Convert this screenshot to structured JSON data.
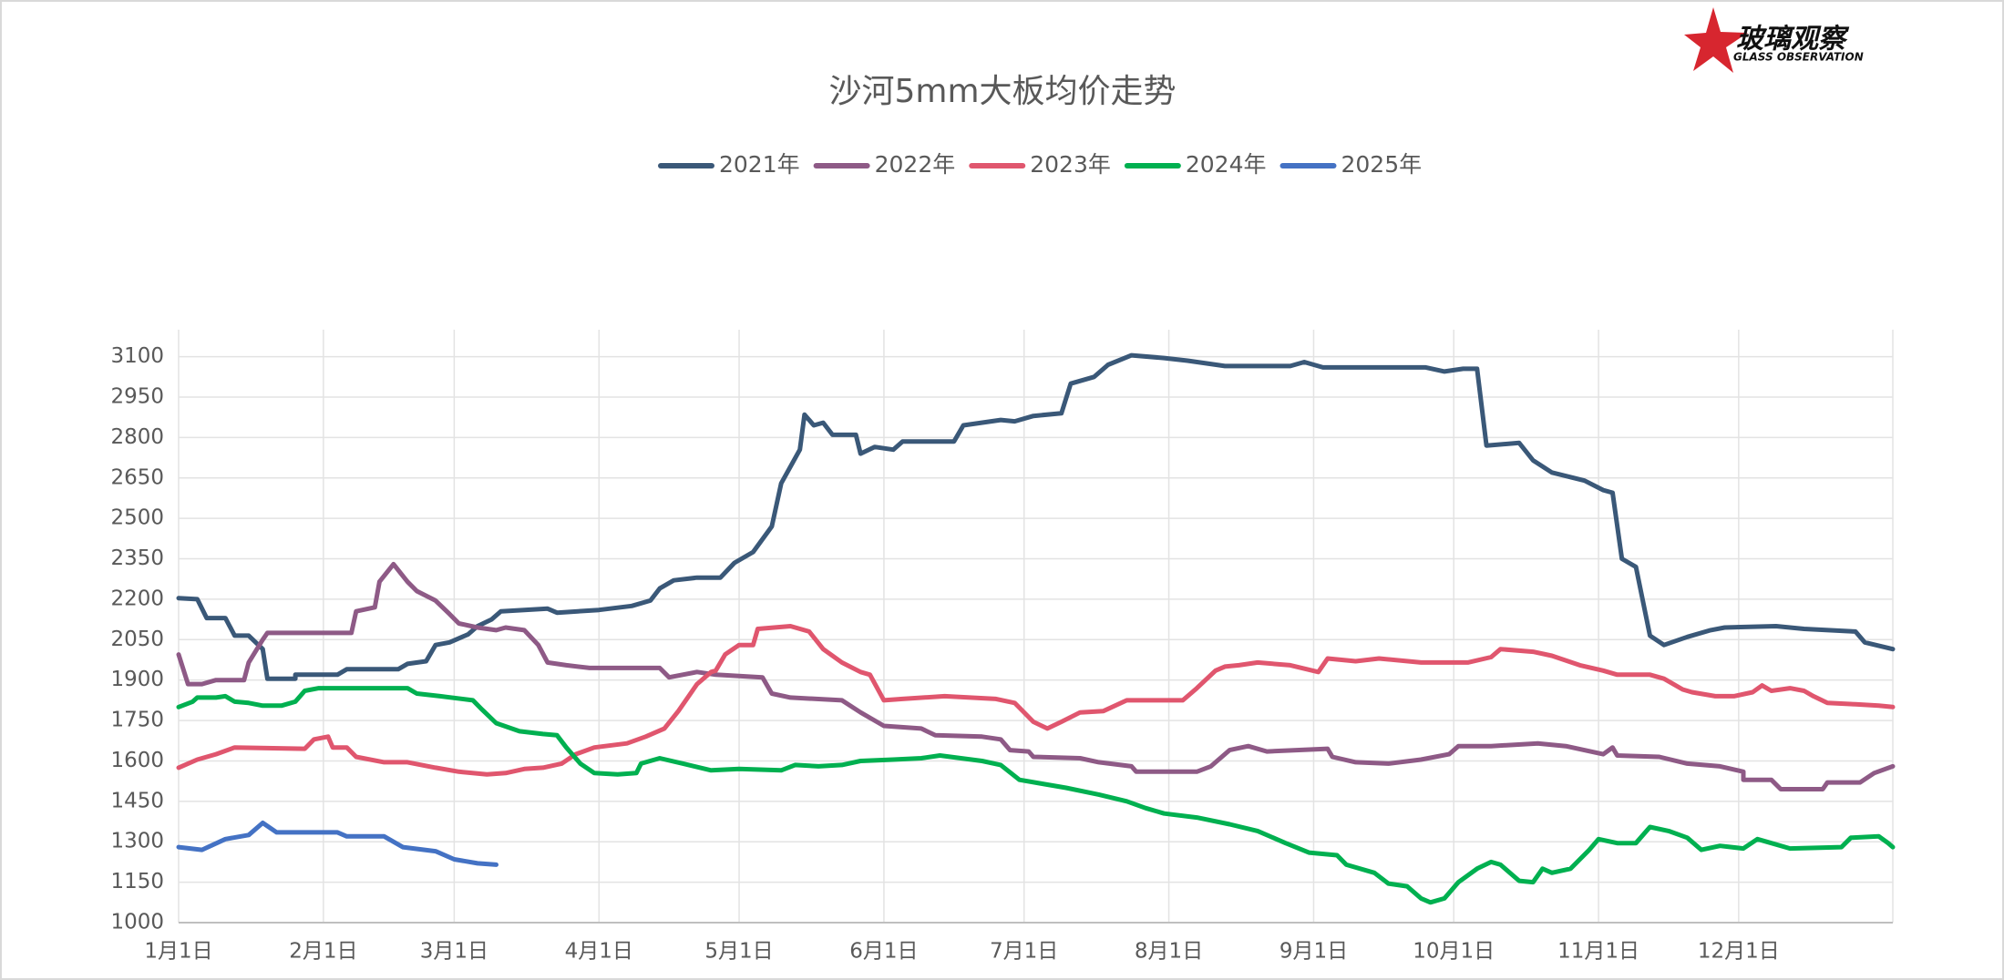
{
  "chart_data": {
    "type": "line",
    "title": "沙河5mm大板均价走势",
    "logo": {
      "text": "玻璃观察",
      "subtitle": "GLASS OBSERVATION"
    },
    "xlim": [
      0,
      367
    ],
    "xticks": [
      {
        "value": 0,
        "label": "1月1日"
      },
      {
        "value": 31,
        "label": "2月1日"
      },
      {
        "value": 59,
        "label": "3月1日"
      },
      {
        "value": 90,
        "label": "4月1日"
      },
      {
        "value": 120,
        "label": "5月1日"
      },
      {
        "value": 151,
        "label": "6月1日"
      },
      {
        "value": 181,
        "label": "7月1日"
      },
      {
        "value": 212,
        "label": "8月1日"
      },
      {
        "value": 243,
        "label": "9月1日"
      },
      {
        "value": 273,
        "label": "10月1日"
      },
      {
        "value": 304,
        "label": "11月1日"
      },
      {
        "value": 334,
        "label": "12月1日"
      }
    ],
    "ylim": [
      1000,
      3200
    ],
    "yticks": [
      1000,
      1150,
      1300,
      1450,
      1600,
      1750,
      1900,
      2050,
      2200,
      2350,
      2500,
      2650,
      2800,
      2950,
      3100
    ],
    "grid": true,
    "legend": "top",
    "series": [
      {
        "name": "2021年",
        "color": "#3a5878",
        "x": [
          0,
          4,
          6,
          10,
          12,
          15,
          18,
          19,
          25,
          25,
          34,
          36,
          47,
          49,
          53,
          55,
          58,
          62,
          64,
          67,
          69,
          74,
          79,
          81,
          90,
          97,
          101,
          103,
          106,
          111,
          116,
          119,
          123,
          127,
          129,
          133,
          134,
          136,
          138,
          140,
          145,
          146,
          149,
          153,
          155,
          166,
          168,
          176,
          179,
          183,
          189,
          191,
          196,
          199,
          204,
          211,
          216,
          224,
          238,
          241,
          245,
          267,
          271,
          275,
          278,
          280,
          287,
          290,
          294,
          301,
          305,
          307,
          309,
          312,
          315,
          318,
          323,
          328,
          331,
          342,
          348,
          359,
          361,
          367
        ],
        "values": [
          2204,
          2200,
          2130,
          2130,
          2065,
          2065,
          2015,
          1905,
          1905,
          1920,
          1920,
          1940,
          1940,
          1960,
          1970,
          2030,
          2040,
          2070,
          2100,
          2125,
          2155,
          2160,
          2165,
          2150,
          2160,
          2175,
          2195,
          2240,
          2270,
          2280,
          2280,
          2335,
          2375,
          2470,
          2630,
          2755,
          2885,
          2845,
          2855,
          2810,
          2810,
          2740,
          2765,
          2755,
          2785,
          2785,
          2845,
          2865,
          2860,
          2880,
          2890,
          3000,
          3025,
          3070,
          3105,
          3095,
          3085,
          3065,
          3065,
          3080,
          3060,
          3060,
          3045,
          3055,
          3055,
          2770,
          2780,
          2715,
          2670,
          2640,
          2605,
          2595,
          2350,
          2320,
          2065,
          2030,
          2060,
          2085,
          2095,
          2100,
          2090,
          2080,
          2040,
          2015
        ]
      },
      {
        "name": "2022年",
        "color": "#8e5a86",
        "x": [
          0,
          2,
          5,
          8,
          14,
          15,
          18,
          19,
          37,
          38,
          42,
          43,
          46,
          49,
          51,
          55,
          58,
          60,
          64,
          68,
          70,
          74,
          77,
          79,
          83,
          88,
          103,
          105,
          111,
          115,
          125,
          127,
          131,
          142,
          146,
          151,
          159,
          162,
          172,
          176,
          178,
          182,
          183,
          193,
          197,
          204,
          205,
          218,
          221,
          225,
          229,
          233,
          246,
          247,
          252,
          259,
          266,
          272,
          274,
          281,
          291,
          297,
          305,
          307,
          308,
          317,
          323,
          330,
          335,
          335,
          341,
          343,
          352,
          353,
          360,
          363,
          367
        ],
        "values": [
          1995,
          1885,
          1885,
          1900,
          1900,
          1965,
          2050,
          2075,
          2075,
          2155,
          2170,
          2265,
          2330,
          2265,
          2230,
          2195,
          2145,
          2110,
          2095,
          2085,
          2095,
          2085,
          2030,
          1965,
          1955,
          1945,
          1945,
          1910,
          1930,
          1920,
          1910,
          1850,
          1835,
          1825,
          1780,
          1730,
          1720,
          1695,
          1690,
          1680,
          1640,
          1635,
          1615,
          1610,
          1595,
          1580,
          1560,
          1560,
          1580,
          1640,
          1655,
          1635,
          1645,
          1615,
          1595,
          1590,
          1605,
          1625,
          1655,
          1655,
          1665,
          1655,
          1625,
          1650,
          1620,
          1615,
          1590,
          1580,
          1560,
          1530,
          1530,
          1495,
          1495,
          1520,
          1520,
          1555,
          1580
        ]
      },
      {
        "name": "2023年",
        "color": "#e0566e",
        "x": [
          0,
          4,
          8,
          12,
          27,
          29,
          32,
          33,
          36,
          38,
          44,
          49,
          55,
          60,
          66,
          70,
          74,
          78,
          82,
          85,
          89,
          96,
          100,
          104,
          107,
          111,
          114,
          115,
          117,
          120,
          123,
          124,
          131,
          135,
          138,
          142,
          146,
          148,
          151,
          155,
          164,
          175,
          179,
          183,
          186,
          189,
          193,
          198,
          203,
          208,
          215,
          218,
          222,
          224,
          227,
          231,
          238,
          244,
          246,
          252,
          257,
          266,
          276,
          281,
          283,
          290,
          294,
          300,
          305,
          308,
          315,
          318,
          322,
          324,
          329,
          333,
          337,
          339,
          341,
          345,
          348,
          350,
          353,
          359,
          364,
          367
        ],
        "values": [
          1575,
          1605,
          1625,
          1650,
          1645,
          1680,
          1690,
          1650,
          1650,
          1615,
          1595,
          1595,
          1575,
          1560,
          1550,
          1555,
          1570,
          1575,
          1590,
          1625,
          1650,
          1665,
          1690,
          1720,
          1785,
          1885,
          1930,
          1935,
          1995,
          2030,
          2030,
          2090,
          2100,
          2080,
          2015,
          1965,
          1930,
          1920,
          1825,
          1830,
          1840,
          1830,
          1815,
          1745,
          1720,
          1745,
          1780,
          1785,
          1825,
          1825,
          1825,
          1870,
          1935,
          1950,
          1955,
          1965,
          1955,
          1930,
          1980,
          1970,
          1980,
          1965,
          1965,
          1985,
          2015,
          2005,
          1990,
          1955,
          1935,
          1920,
          1920,
          1905,
          1865,
          1855,
          1840,
          1840,
          1855,
          1880,
          1860,
          1870,
          1860,
          1840,
          1815,
          1810,
          1805,
          1800
        ]
      },
      {
        "name": "2024年",
        "color": "#00b050",
        "x": [
          0,
          3,
          4,
          8,
          10,
          12,
          15,
          18,
          22,
          25,
          27,
          30,
          49,
          51,
          56,
          63,
          65,
          68,
          73,
          78,
          81,
          83,
          86,
          89,
          94,
          98,
          99,
          103,
          108,
          114,
          120,
          129,
          132,
          137,
          142,
          146,
          153,
          159,
          163,
          172,
          176,
          180,
          185,
          190,
          197,
          203,
          207,
          211,
          218,
          225,
          231,
          237,
          242,
          248,
          250,
          256,
          259,
          263,
          266,
          268,
          271,
          274,
          278,
          281,
          283,
          287,
          290,
          292,
          294,
          298,
          302,
          304,
          308,
          312,
          315,
          319,
          323,
          326,
          330,
          335,
          338,
          341,
          345,
          356,
          358,
          364,
          366,
          367
        ],
        "values": [
          1800,
          1820,
          1835,
          1835,
          1840,
          1820,
          1815,
          1805,
          1805,
          1820,
          1860,
          1870,
          1870,
          1850,
          1840,
          1825,
          1790,
          1740,
          1710,
          1700,
          1695,
          1650,
          1590,
          1555,
          1550,
          1555,
          1590,
          1610,
          1590,
          1565,
          1570,
          1565,
          1585,
          1580,
          1585,
          1600,
          1605,
          1610,
          1620,
          1600,
          1585,
          1530,
          1515,
          1500,
          1475,
          1450,
          1425,
          1405,
          1390,
          1365,
          1340,
          1295,
          1260,
          1250,
          1215,
          1185,
          1145,
          1135,
          1090,
          1075,
          1090,
          1150,
          1200,
          1225,
          1215,
          1155,
          1150,
          1200,
          1185,
          1200,
          1270,
          1310,
          1295,
          1295,
          1355,
          1340,
          1315,
          1270,
          1285,
          1275,
          1310,
          1295,
          1275,
          1280,
          1315,
          1320,
          1295,
          1280
        ]
      },
      {
        "name": "2025年",
        "color": "#4472c4",
        "x": [
          0,
          5,
          10,
          15,
          18,
          21,
          34,
          36,
          44,
          48,
          55,
          59,
          64,
          68
        ],
        "values": [
          1280,
          1270,
          1310,
          1325,
          1370,
          1335,
          1335,
          1320,
          1320,
          1280,
          1265,
          1235,
          1220,
          1215
        ]
      }
    ]
  }
}
